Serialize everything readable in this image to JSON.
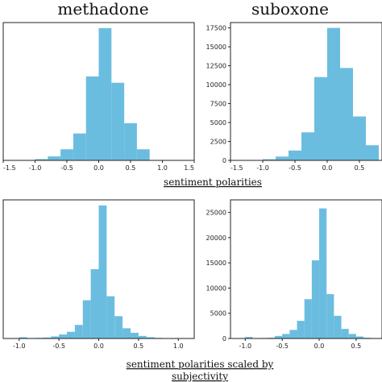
{
  "captions": {
    "top": "sentiment polarities",
    "bottom_line1": "sentiment polarities scaled by",
    "bottom_line2": "subjectivity"
  },
  "colors": {
    "bar": "#6bbde0",
    "axis": "#222222"
  },
  "chart_data": [
    {
      "type": "bar",
      "title": "methadone",
      "xlabel": "sentiment polarities",
      "xlim": [
        -1.5,
        1.5
      ],
      "ylim": [
        0,
        8700
      ],
      "xticks": [
        "-1.5",
        "-1.0",
        "-0.5",
        "0.0",
        "0.5",
        "1.0",
        "1.5"
      ],
      "yticks": [],
      "bins": [
        [
          -1.0,
          -0.8
        ],
        [
          -0.8,
          -0.6
        ],
        [
          -0.6,
          -0.4
        ],
        [
          -0.4,
          -0.2
        ],
        [
          -0.2,
          0.0
        ],
        [
          0.0,
          0.2
        ],
        [
          0.2,
          0.4
        ],
        [
          0.4,
          0.6
        ],
        [
          0.6,
          0.8
        ],
        [
          0.8,
          1.0
        ]
      ],
      "values": [
        80,
        250,
        700,
        1700,
        5300,
        8350,
        4900,
        2350,
        700,
        0
      ]
    },
    {
      "type": "bar",
      "title": "suboxone",
      "xlabel": "sentiment polarities",
      "xlim": [
        -1.5,
        0.85
      ],
      "ylim": [
        0,
        18200
      ],
      "xticks": [
        "-1.5",
        "-1.0",
        "-0.5",
        "0.0",
        "0.5"
      ],
      "yticks": [
        "0",
        "2500",
        "5000",
        "7500",
        "10000",
        "12500",
        "15000",
        "17500"
      ],
      "bins": [
        [
          -1.0,
          -0.8
        ],
        [
          -0.8,
          -0.6
        ],
        [
          -0.6,
          -0.4
        ],
        [
          -0.4,
          -0.2
        ],
        [
          -0.2,
          0.0
        ],
        [
          0.0,
          0.2
        ],
        [
          0.2,
          0.4
        ],
        [
          0.4,
          0.6
        ],
        [
          0.6,
          0.8
        ],
        [
          0.8,
          1.0
        ]
      ],
      "values": [
        150,
        500,
        1300,
        3700,
        11000,
        17500,
        12200,
        5800,
        2000,
        0
      ]
    },
    {
      "type": "bar",
      "title": "",
      "xlabel": "sentiment polarities scaled by subjectivity",
      "xlim": [
        -1.2,
        1.2
      ],
      "ylim": [
        0,
        8700
      ],
      "xticks": [
        "-1.0",
        "-0.5",
        "0.0",
        "0.5",
        "1.0"
      ],
      "yticks": [],
      "bins": [
        [
          -1.0,
          -0.9
        ],
        [
          -0.9,
          -0.8
        ],
        [
          -0.8,
          -0.7
        ],
        [
          -0.7,
          -0.6
        ],
        [
          -0.6,
          -0.5
        ],
        [
          -0.5,
          -0.4
        ],
        [
          -0.4,
          -0.3
        ],
        [
          -0.3,
          -0.2
        ],
        [
          -0.2,
          -0.1
        ],
        [
          -0.1,
          0.0
        ],
        [
          0.0,
          0.1
        ],
        [
          0.1,
          0.2
        ],
        [
          0.2,
          0.3
        ],
        [
          0.3,
          0.4
        ],
        [
          0.4,
          0.5
        ],
        [
          0.5,
          0.6
        ],
        [
          0.6,
          0.7
        ],
        [
          0.7,
          0.8
        ],
        [
          0.8,
          0.9
        ],
        [
          0.9,
          1.0
        ]
      ],
      "values": [
        80,
        30,
        40,
        60,
        130,
        250,
        420,
        850,
        2400,
        4350,
        8350,
        2650,
        1400,
        640,
        360,
        160,
        80,
        40,
        20,
        0
      ]
    },
    {
      "type": "bar",
      "title": "",
      "xlabel": "sentiment polarities scaled by subjectivity",
      "xlim": [
        -1.2,
        0.85
      ],
      "ylim": [
        0,
        27500
      ],
      "xticks": [
        "-1.0",
        "-0.5",
        "0.0",
        "0.5"
      ],
      "yticks": [
        "0",
        "5000",
        "10000",
        "15000",
        "20000",
        "25000"
      ],
      "bins": [
        [
          -1.0,
          -0.9
        ],
        [
          -0.9,
          -0.8
        ],
        [
          -0.8,
          -0.7
        ],
        [
          -0.7,
          -0.6
        ],
        [
          -0.6,
          -0.5
        ],
        [
          -0.5,
          -0.4
        ],
        [
          -0.4,
          -0.3
        ],
        [
          -0.3,
          -0.2
        ],
        [
          -0.2,
          -0.1
        ],
        [
          -0.1,
          0.0
        ],
        [
          0.0,
          0.1
        ],
        [
          0.1,
          0.2
        ],
        [
          0.2,
          0.3
        ],
        [
          0.3,
          0.4
        ],
        [
          0.4,
          0.5
        ],
        [
          0.5,
          0.6
        ],
        [
          0.6,
          0.7
        ],
        [
          0.7,
          0.8
        ],
        [
          0.8,
          0.9
        ],
        [
          0.9,
          1.0
        ]
      ],
      "values": [
        300,
        80,
        100,
        150,
        500,
        900,
        1700,
        3500,
        7800,
        15500,
        25800,
        8800,
        4500,
        1900,
        900,
        400,
        150,
        60,
        20,
        0
      ]
    }
  ]
}
